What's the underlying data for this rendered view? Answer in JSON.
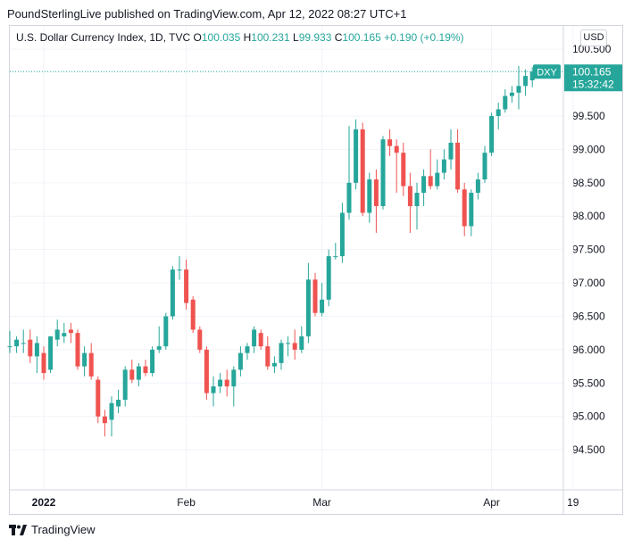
{
  "header": {
    "publisher_line": "PoundSterlingLive published on TradingView.com, Apr 12, 2022 08:27 UTC+1"
  },
  "legend": {
    "symbol_line": "U.S. Dollar Currency Index, 1D, TVC",
    "open_key": "O",
    "open": "100.035",
    "high_key": "H",
    "high": "100.231",
    "low_key": "L",
    "low": "99.933",
    "close_key": "C",
    "close": "100.165",
    "change": "+0.190 (+0.19%)"
  },
  "currency": "USD",
  "brand": {
    "name": "TradingView"
  },
  "colors": {
    "up": "#26a69a",
    "down": "#ef5350",
    "grid": "#f0f3fa",
    "text": "#131722"
  },
  "chart_data": {
    "type": "candlestick",
    "title": "U.S. Dollar Currency Index, 1D, TVC",
    "y_ticks": [
      "94.500",
      "95.000",
      "95.500",
      "96.000",
      "96.500",
      "97.000",
      "97.500",
      "98.000",
      "98.500",
      "99.000",
      "99.500",
      "100.500"
    ],
    "ylim": [
      93.9,
      100.85
    ],
    "x_ticks": [
      {
        "label": "2022",
        "index": 5
      },
      {
        "label": "Feb",
        "index": 26
      },
      {
        "label": "Mar",
        "index": 46
      },
      {
        "label": "Apr",
        "index": 71
      },
      {
        "label": "19",
        "index": 83
      }
    ],
    "last_price": {
      "symbol": "DXY",
      "value": "100.165",
      "countdown": "15:32:42"
    },
    "candles": [
      {
        "o": 96.05,
        "h": 96.28,
        "l": 95.95,
        "c": 96.05
      },
      {
        "o": 96.05,
        "h": 96.2,
        "l": 95.95,
        "c": 96.15
      },
      {
        "o": 96.1,
        "h": 96.3,
        "l": 95.95,
        "c": 96.1
      },
      {
        "o": 96.15,
        "h": 96.3,
        "l": 95.8,
        "c": 95.9
      },
      {
        "o": 95.9,
        "h": 96.2,
        "l": 95.65,
        "c": 96.1
      },
      {
        "o": 95.95,
        "h": 96.05,
        "l": 95.55,
        "c": 95.65
      },
      {
        "o": 95.7,
        "h": 96.2,
        "l": 95.65,
        "c": 96.2
      },
      {
        "o": 96.15,
        "h": 96.45,
        "l": 96.05,
        "c": 96.3
      },
      {
        "o": 96.2,
        "h": 96.4,
        "l": 96.1,
        "c": 96.25
      },
      {
        "o": 96.3,
        "h": 96.4,
        "l": 96.1,
        "c": 96.25
      },
      {
        "o": 96.25,
        "h": 96.3,
        "l": 95.7,
        "c": 95.75
      },
      {
        "o": 95.75,
        "h": 96.05,
        "l": 95.6,
        "c": 95.95
      },
      {
        "o": 95.95,
        "h": 96.1,
        "l": 95.55,
        "c": 95.6
      },
      {
        "o": 95.55,
        "h": 95.6,
        "l": 94.9,
        "c": 95.0
      },
      {
        "o": 95.0,
        "h": 95.1,
        "l": 94.7,
        "c": 94.9
      },
      {
        "o": 94.95,
        "h": 95.3,
        "l": 94.7,
        "c": 95.2
      },
      {
        "o": 95.15,
        "h": 95.4,
        "l": 95.05,
        "c": 95.25
      },
      {
        "o": 95.25,
        "h": 95.75,
        "l": 95.15,
        "c": 95.7
      },
      {
        "o": 95.7,
        "h": 95.85,
        "l": 95.5,
        "c": 95.55
      },
      {
        "o": 95.55,
        "h": 95.8,
        "l": 95.45,
        "c": 95.75
      },
      {
        "o": 95.75,
        "h": 95.85,
        "l": 95.6,
        "c": 95.65
      },
      {
        "o": 95.65,
        "h": 96.05,
        "l": 95.6,
        "c": 96.0
      },
      {
        "o": 96.0,
        "h": 96.35,
        "l": 95.95,
        "c": 96.05
      },
      {
        "o": 96.05,
        "h": 96.55,
        "l": 96.0,
        "c": 96.5
      },
      {
        "o": 96.5,
        "h": 97.25,
        "l": 96.45,
        "c": 97.2
      },
      {
        "o": 97.2,
        "h": 97.4,
        "l": 97.05,
        "c": 97.2
      },
      {
        "o": 97.2,
        "h": 97.35,
        "l": 96.6,
        "c": 96.7
      },
      {
        "o": 96.75,
        "h": 96.8,
        "l": 96.25,
        "c": 96.3
      },
      {
        "o": 96.3,
        "h": 96.35,
        "l": 95.95,
        "c": 96.0
      },
      {
        "o": 96.0,
        "h": 96.05,
        "l": 95.25,
        "c": 95.35
      },
      {
        "o": 95.35,
        "h": 95.6,
        "l": 95.15,
        "c": 95.45
      },
      {
        "o": 95.45,
        "h": 95.65,
        "l": 95.35,
        "c": 95.55
      },
      {
        "o": 95.55,
        "h": 95.7,
        "l": 95.3,
        "c": 95.45
      },
      {
        "o": 95.45,
        "h": 95.75,
        "l": 95.15,
        "c": 95.7
      },
      {
        "o": 95.7,
        "h": 96.05,
        "l": 95.6,
        "c": 95.95
      },
      {
        "o": 95.95,
        "h": 96.1,
        "l": 95.85,
        "c": 96.05
      },
      {
        "o": 96.05,
        "h": 96.35,
        "l": 95.95,
        "c": 96.3
      },
      {
        "o": 96.25,
        "h": 96.3,
        "l": 96.0,
        "c": 96.05
      },
      {
        "o": 96.05,
        "h": 96.2,
        "l": 95.7,
        "c": 95.75
      },
      {
        "o": 95.75,
        "h": 95.9,
        "l": 95.65,
        "c": 95.8
      },
      {
        "o": 95.8,
        "h": 96.15,
        "l": 95.7,
        "c": 96.1
      },
      {
        "o": 96.1,
        "h": 96.2,
        "l": 95.9,
        "c": 96.1
      },
      {
        "o": 96.1,
        "h": 96.3,
        "l": 95.85,
        "c": 96.0
      },
      {
        "o": 96.0,
        "h": 96.35,
        "l": 95.95,
        "c": 96.2
      },
      {
        "o": 96.2,
        "h": 97.3,
        "l": 96.1,
        "c": 97.05
      },
      {
        "o": 97.05,
        "h": 97.15,
        "l": 96.5,
        "c": 96.55
      },
      {
        "o": 96.55,
        "h": 97.0,
        "l": 96.5,
        "c": 96.75
      },
      {
        "o": 96.75,
        "h": 97.5,
        "l": 96.65,
        "c": 97.4
      },
      {
        "o": 97.4,
        "h": 97.6,
        "l": 97.35,
        "c": 97.4
      },
      {
        "o": 97.4,
        "h": 98.2,
        "l": 97.3,
        "c": 98.05
      },
      {
        "o": 98.05,
        "h": 99.35,
        "l": 97.95,
        "c": 98.5
      },
      {
        "o": 98.5,
        "h": 99.45,
        "l": 98.4,
        "c": 99.3
      },
      {
        "o": 99.3,
        "h": 99.4,
        "l": 98.0,
        "c": 98.05
      },
      {
        "o": 98.05,
        "h": 98.65,
        "l": 97.9,
        "c": 98.55
      },
      {
        "o": 98.55,
        "h": 98.7,
        "l": 97.75,
        "c": 98.15
      },
      {
        "o": 98.15,
        "h": 99.2,
        "l": 98.1,
        "c": 99.15
      },
      {
        "o": 99.15,
        "h": 99.3,
        "l": 98.9,
        "c": 99.05
      },
      {
        "o": 99.05,
        "h": 99.15,
        "l": 98.35,
        "c": 98.95
      },
      {
        "o": 98.95,
        "h": 99.1,
        "l": 98.3,
        "c": 98.45
      },
      {
        "o": 98.45,
        "h": 98.65,
        "l": 97.75,
        "c": 98.15
      },
      {
        "o": 98.15,
        "h": 98.5,
        "l": 97.8,
        "c": 98.35
      },
      {
        "o": 98.35,
        "h": 98.7,
        "l": 98.15,
        "c": 98.6
      },
      {
        "o": 98.6,
        "h": 99.0,
        "l": 98.4,
        "c": 98.45
      },
      {
        "o": 98.45,
        "h": 98.85,
        "l": 98.4,
        "c": 98.65
      },
      {
        "o": 98.65,
        "h": 99.0,
        "l": 98.55,
        "c": 98.85
      },
      {
        "o": 98.85,
        "h": 99.3,
        "l": 98.7,
        "c": 99.1
      },
      {
        "o": 99.1,
        "h": 99.3,
        "l": 98.35,
        "c": 98.4
      },
      {
        "o": 98.4,
        "h": 98.5,
        "l": 97.7,
        "c": 97.85
      },
      {
        "o": 97.85,
        "h": 98.4,
        "l": 97.7,
        "c": 98.35
      },
      {
        "o": 98.35,
        "h": 98.65,
        "l": 98.25,
        "c": 98.55
      },
      {
        "o": 98.55,
        "h": 99.05,
        "l": 98.5,
        "c": 98.95
      },
      {
        "o": 98.95,
        "h": 99.55,
        "l": 98.9,
        "c": 99.5
      },
      {
        "o": 99.5,
        "h": 99.7,
        "l": 99.3,
        "c": 99.6
      },
      {
        "o": 99.6,
        "h": 99.9,
        "l": 99.55,
        "c": 99.8
      },
      {
        "o": 99.8,
        "h": 99.95,
        "l": 99.7,
        "c": 99.85
      },
      {
        "o": 99.85,
        "h": 100.25,
        "l": 99.6,
        "c": 99.95
      },
      {
        "o": 99.95,
        "h": 100.2,
        "l": 99.8,
        "c": 100.1
      },
      {
        "o": 100.035,
        "h": 100.231,
        "l": 99.933,
        "c": 100.165
      }
    ]
  }
}
